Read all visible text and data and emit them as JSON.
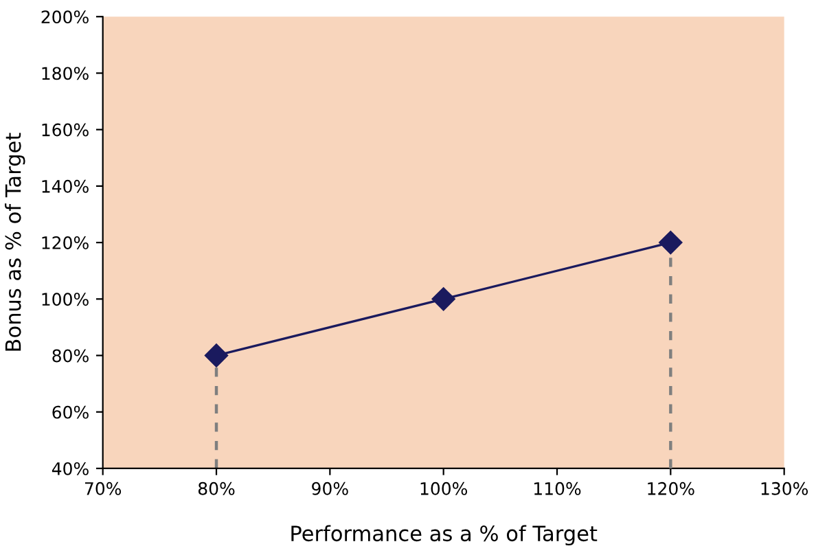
{
  "chart_data": {
    "type": "line",
    "xlabel": "Performance as a % of Target",
    "ylabel": "Bonus as % of Target",
    "series": [
      {
        "color": "#7f7f7f",
        "x": [
          80,
          80
        ],
        "values": [
          40,
          80
        ],
        "line_style": "dashed",
        "marker": "none"
      },
      {
        "color": "#7f7f7f",
        "x": [
          120,
          120
        ],
        "values": [
          40,
          120
        ],
        "line_style": "dashed",
        "marker": "none"
      },
      {
        "color": "#1a1a5e",
        "x": [
          80,
          100,
          120
        ],
        "values": [
          80,
          100,
          120
        ],
        "line_style": "solid",
        "marker": "diamond"
      }
    ],
    "xlim": [
      70,
      130
    ],
    "xticks": [
      {
        "value": 70,
        "label": "70%"
      },
      {
        "value": 80,
        "label": "80%"
      },
      {
        "value": 90,
        "label": "90%"
      },
      {
        "value": 100,
        "label": "100%"
      },
      {
        "value": 110,
        "label": "110%"
      },
      {
        "value": 120,
        "label": "120%"
      },
      {
        "value": 130,
        "label": "130%"
      }
    ],
    "ylim": [
      40,
      200
    ],
    "yticks": [
      {
        "value": 40,
        "label": "40%"
      },
      {
        "value": 60,
        "label": "60%"
      },
      {
        "value": 80,
        "label": "80%"
      },
      {
        "value": 100,
        "label": "100%"
      },
      {
        "value": 120,
        "label": "120%"
      },
      {
        "value": 140,
        "label": "140%"
      },
      {
        "value": 160,
        "label": "160%"
      },
      {
        "value": 180,
        "label": "180%"
      },
      {
        "value": 200,
        "label": "200%"
      }
    ],
    "grid": false,
    "legend": false
  }
}
